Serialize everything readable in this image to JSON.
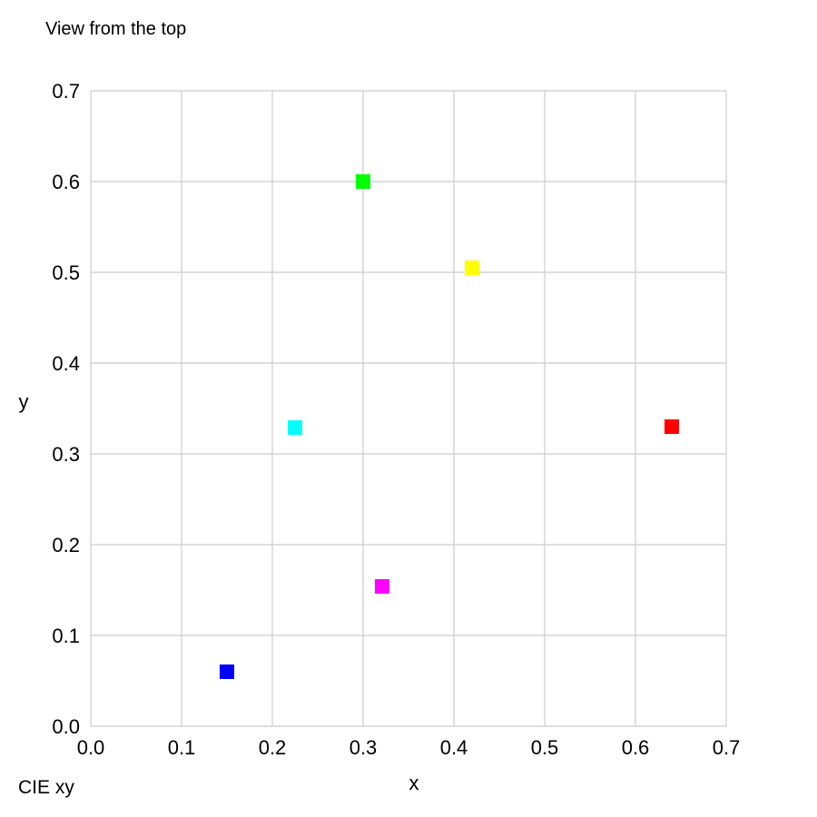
{
  "header": {
    "view_label": "View from the top"
  },
  "footer": {
    "space_label": "CIE xy"
  },
  "chart_data": {
    "type": "scatter",
    "title": "",
    "xlabel": "x",
    "ylabel": "y",
    "xlim": [
      0.0,
      0.7
    ],
    "ylim": [
      0.0,
      0.7
    ],
    "grid": true,
    "xticks": [
      "0.0",
      "0.1",
      "0.2",
      "0.3",
      "0.4",
      "0.5",
      "0.6",
      "0.7"
    ],
    "yticks": [
      "0.0",
      "0.1",
      "0.2",
      "0.3",
      "0.4",
      "0.5",
      "0.6",
      "0.7"
    ],
    "points": [
      {
        "x": 0.64,
        "y": 0.33,
        "color": "#ff0000"
      },
      {
        "x": 0.42,
        "y": 0.505,
        "color": "#ffff00"
      },
      {
        "x": 0.3,
        "y": 0.6,
        "color": "#00ff00"
      },
      {
        "x": 0.225,
        "y": 0.329,
        "color": "#00ffff"
      },
      {
        "x": 0.15,
        "y": 0.06,
        "color": "#0000ff"
      },
      {
        "x": 0.321,
        "y": 0.154,
        "color": "#ff00ff"
      }
    ],
    "swatch": {
      "rows": [
        "#ff0000",
        "#ffff00",
        "#00ff00",
        "#00ffff",
        "#0000ff",
        "#ff00ff"
      ],
      "columns": 10
    }
  }
}
